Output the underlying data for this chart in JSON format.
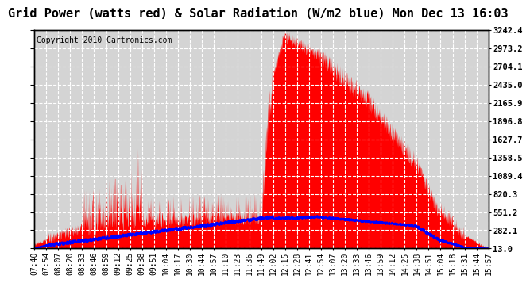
{
  "title": "Grid Power (watts red) & Solar Radiation (W/m2 blue) Mon Dec 13 16:03",
  "copyright_text": "Copyright 2010 Cartronics.com",
  "background_color": "#ffffff",
  "plot_bg_color": "#d4d4d4",
  "grid_color": "#ffffff",
  "yticks": [
    13.0,
    282.1,
    551.2,
    820.3,
    1089.4,
    1358.5,
    1627.7,
    1896.8,
    2165.9,
    2435.0,
    2704.1,
    2973.2,
    3242.4
  ],
  "ymin": 13.0,
  "ymax": 3242.4,
  "xtick_labels": [
    "07:40",
    "07:54",
    "08:07",
    "08:20",
    "08:33",
    "08:46",
    "08:59",
    "09:12",
    "09:25",
    "09:38",
    "09:51",
    "10:04",
    "10:17",
    "10:30",
    "10:44",
    "10:57",
    "11:10",
    "11:23",
    "11:36",
    "11:49",
    "12:02",
    "12:15",
    "12:28",
    "12:41",
    "12:54",
    "13:07",
    "13:20",
    "13:33",
    "13:46",
    "13:59",
    "14:12",
    "14:25",
    "14:38",
    "14:51",
    "15:04",
    "15:18",
    "15:31",
    "15:44",
    "15:57"
  ],
  "red_fill_color": "#ff0000",
  "blue_line_color": "#0000ff",
  "title_fontsize": 11,
  "tick_fontsize": 7,
  "copyright_fontsize": 7,
  "ylabel_fontsize": 7.5
}
